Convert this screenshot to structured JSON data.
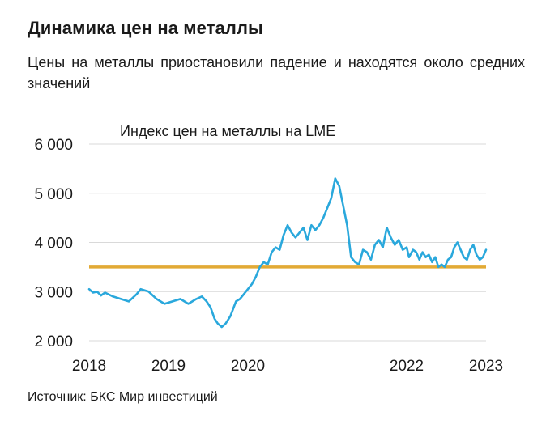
{
  "header": {
    "title": "Динамика цен на металлы",
    "subtitle": "Цены на металлы приостановили падение и находятся около средних значений"
  },
  "footer": {
    "source": "Источник: БКС Мир инвестиций"
  },
  "colors": {
    "series": "#2AA8DC",
    "reference_line": "#E2AA35",
    "grid": "#D9D9D9",
    "text": "#1A1A1A"
  },
  "chart_data": {
    "type": "line",
    "title": "Индекс цен на металлы на LME",
    "xlabel": "",
    "ylabel": "",
    "xlim": [
      2018,
      2023
    ],
    "ylim": [
      2000,
      6000
    ],
    "grid": true,
    "x_ticks": [
      2018,
      2019,
      2020,
      2022,
      2023
    ],
    "x_tick_labels": [
      "2018",
      "2019",
      "2020",
      "2022",
      "2023"
    ],
    "y_ticks": [
      2000,
      3000,
      4000,
      5000,
      6000
    ],
    "y_tick_labels": [
      "2 000",
      "3 000",
      "4 000",
      "5 000",
      "6 000"
    ],
    "series": [
      {
        "x": [
          2018.0,
          2018.05,
          2018.1,
          2018.15,
          2018.2,
          2018.3,
          2018.4,
          2018.5,
          2018.6,
          2018.65,
          2018.75,
          2018.85,
          2018.95,
          2019.05,
          2019.15,
          2019.25,
          2019.35,
          2019.42,
          2019.48,
          2019.53,
          2019.58,
          2019.62,
          2019.67,
          2019.72,
          2019.78,
          2019.85,
          2019.9,
          2019.95,
          2020.0,
          2020.05,
          2020.1,
          2020.15,
          2020.2,
          2020.25,
          2020.3,
          2020.35,
          2020.4,
          2020.45,
          2020.5,
          2020.55,
          2020.6,
          2020.65,
          2020.7,
          2020.75,
          2020.8,
          2020.85,
          2020.9,
          2020.95,
          2021.0,
          2021.05,
          2021.1,
          2021.15,
          2021.2,
          2021.25,
          2021.3,
          2021.35,
          2021.4,
          2021.45,
          2021.5,
          2021.55,
          2021.6,
          2021.65,
          2021.7,
          2021.75,
          2021.8,
          2021.85,
          2021.9,
          2021.95,
          2022.0,
          2022.03,
          2022.08,
          2022.12,
          2022.16,
          2022.2,
          2022.24,
          2022.28,
          2022.32,
          2022.36,
          2022.4,
          2022.44,
          2022.48,
          2022.52,
          2022.56,
          2022.6,
          2022.64,
          2022.68,
          2022.72,
          2022.76,
          2022.8,
          2022.84,
          2022.88,
          2022.92,
          2022.96,
          2023.0
        ],
        "y": [
          3050,
          2980,
          3000,
          2920,
          2980,
          2900,
          2850,
          2800,
          2950,
          3050,
          3000,
          2850,
          2750,
          2800,
          2850,
          2750,
          2850,
          2900,
          2800,
          2680,
          2450,
          2350,
          2280,
          2350,
          2500,
          2800,
          2850,
          2950,
          3050,
          3150,
          3300,
          3500,
          3600,
          3550,
          3800,
          3900,
          3850,
          4150,
          4350,
          4200,
          4100,
          4200,
          4300,
          4050,
          4350,
          4250,
          4350,
          4500,
          4700,
          4900,
          5300,
          5150,
          4750,
          4350,
          3700,
          3600,
          3550,
          3850,
          3800,
          3650,
          3950,
          4050,
          3900,
          4300,
          4100,
          3950,
          4050,
          3850,
          3900,
          3700,
          3850,
          3800,
          3650,
          3800,
          3700,
          3750,
          3600,
          3700,
          3500,
          3550,
          3500,
          3650,
          3700,
          3900,
          4000,
          3850,
          3700,
          3650,
          3850,
          3950,
          3750,
          3650,
          3700,
          3850
        ]
      },
      {
        "x": [
          2018.0,
          2023.0
        ],
        "y": [
          3500,
          3500
        ]
      }
    ]
  }
}
